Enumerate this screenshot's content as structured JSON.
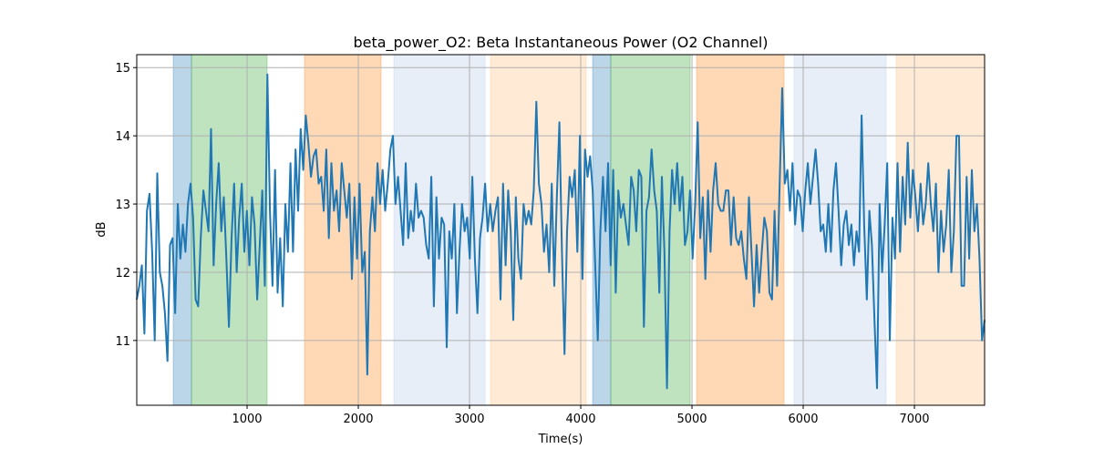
{
  "chart_data": {
    "type": "line",
    "title": "beta_power_O2: Beta Instantaneous Power (O2 Channel)",
    "xlabel": "Time(s)",
    "ylabel": "dB",
    "xlim": [
      8,
      7631
    ],
    "ylim": [
      10.05,
      15.19
    ],
    "grid": true,
    "xticks": [
      1000,
      2000,
      3000,
      4000,
      5000,
      6000,
      7000
    ],
    "xtick_labels": [
      "1000",
      "2000",
      "3000",
      "4000",
      "5000",
      "6000",
      "7000"
    ],
    "yticks": [
      11,
      12,
      13,
      14,
      15
    ],
    "ytick_labels": [
      "11",
      "12",
      "13",
      "14",
      "15"
    ],
    "line_color": "#1f77b4",
    "spans": [
      {
        "x0": 336,
        "x1": 500,
        "color": "#1f77b4",
        "alpha": 0.3
      },
      {
        "x0": 500,
        "x1": 1180,
        "color": "#2ca02c",
        "alpha": 0.3
      },
      {
        "x0": 1516,
        "x1": 2205,
        "color": "#ff7f0e",
        "alpha": 0.3
      },
      {
        "x0": 2320,
        "x1": 3140,
        "color": "#aec7e8",
        "alpha": 0.3
      },
      {
        "x0": 3189,
        "x1": 4049,
        "color": "#ffbb78",
        "alpha": 0.3
      },
      {
        "x0": 4107,
        "x1": 4270,
        "color": "#1f77b4",
        "alpha": 0.3
      },
      {
        "x0": 4270,
        "x1": 4984,
        "color": "#2ca02c",
        "alpha": 0.3
      },
      {
        "x0": 5041,
        "x1": 5828,
        "color": "#ff7f0e",
        "alpha": 0.3
      },
      {
        "x0": 5918,
        "x1": 6746,
        "color": "#aec7e8",
        "alpha": 0.3
      },
      {
        "x0": 6836,
        "x1": 7631,
        "color": "#ffbb78",
        "alpha": 0.3
      }
    ],
    "series": [
      {
        "name": "beta_power_O2",
        "x_range": [
          8,
          7631
        ],
        "values": [
          11.6,
          11.8,
          12.1,
          11.1,
          12.9,
          13.15,
          12.3,
          11.0,
          13.45,
          12.0,
          11.8,
          11.4,
          10.7,
          12.4,
          12.5,
          11.4,
          13.0,
          12.2,
          12.7,
          12.3,
          13.0,
          13.3,
          12.8,
          11.6,
          11.5,
          12.5,
          13.2,
          12.9,
          12.6,
          14.1,
          12.1,
          13.0,
          13.6,
          12.6,
          13.1,
          12.2,
          11.2,
          12.5,
          13.3,
          12.0,
          12.8,
          13.3,
          12.3,
          12.9,
          12.1,
          13.1,
          12.7,
          11.6,
          12.4,
          13.2,
          11.8,
          14.9,
          12.9,
          11.8,
          13.5,
          11.7,
          12.5,
          11.5,
          13.0,
          12.3,
          13.6,
          12.3,
          13.8,
          12.9,
          14.1,
          13.5,
          14.3,
          13.9,
          13.4,
          13.7,
          13.8,
          13.3,
          13.4,
          12.9,
          13.8,
          12.5,
          13.6,
          12.9,
          13.2,
          12.6,
          13.6,
          13.2,
          12.8,
          13.3,
          11.9,
          13.1,
          12.2,
          13.3,
          12.0,
          12.3,
          10.5,
          12.6,
          13.1,
          12.6,
          13.6,
          13.0,
          13.5,
          12.9,
          13.3,
          13.8,
          14.0,
          13.0,
          13.4,
          12.9,
          12.4,
          13.6,
          12.5,
          12.9,
          12.6,
          13.3,
          12.8,
          12.9,
          12.8,
          12.4,
          12.2,
          13.4,
          11.5,
          13.1,
          12.2,
          12.8,
          12.7,
          10.9,
          12.6,
          12.2,
          13.0,
          11.4,
          12.3,
          13.0,
          12.6,
          12.8,
          12.2,
          13.4,
          12.2,
          11.4,
          12.5,
          12.8,
          13.3,
          12.6,
          13.0,
          12.6,
          12.9,
          13.1,
          11.6,
          13.3,
          12.1,
          13.2,
          12.6,
          11.3,
          13.1,
          12.2,
          11.9,
          13.0,
          12.7,
          12.9,
          12.7,
          13.2,
          14.5,
          13.3,
          13.0,
          12.3,
          12.7,
          12.0,
          13.3,
          11.8,
          13.1,
          14.2,
          12.3,
          10.8,
          12.6,
          13.4,
          13.1,
          13.5,
          12.3,
          14.0,
          11.9,
          13.8,
          13.4,
          13.7,
          13.2,
          12.1,
          11.0,
          12.6,
          13.4,
          12.6,
          13.6,
          12.1,
          13.5,
          11.7,
          13.2,
          12.8,
          13.0,
          12.7,
          12.4,
          13.4,
          13.2,
          12.6,
          13.5,
          13.4,
          11.2,
          12.9,
          13.1,
          13.8,
          13.2,
          12.9,
          11.7,
          13.4,
          12.3,
          10.3,
          12.6,
          13.5,
          13.0,
          13.6,
          12.9,
          13.4,
          12.4,
          12.6,
          13.2,
          12.2,
          13.0,
          14.2,
          12.5,
          13.1,
          11.9,
          13.2,
          12.3,
          13.2,
          13.6,
          13.0,
          12.9,
          12.9,
          13.2,
          13.2,
          12.4,
          13.1,
          12.5,
          12.4,
          12.6,
          12.2,
          11.9,
          13.1,
          12.3,
          11.5,
          12.4,
          11.7,
          12.3,
          12.8,
          12.6,
          11.7,
          11.6,
          12.9,
          11.8,
          13.3,
          14.7,
          13.3,
          13.5,
          12.9,
          13.6,
          12.7,
          13.2,
          13.1,
          12.6,
          13.2,
          13.6,
          13.0,
          13.4,
          13.8,
          13.3,
          12.6,
          12.7,
          12.3,
          13.0,
          12.3,
          13.2,
          13.6,
          12.9,
          12.1,
          12.7,
          12.9,
          12.4,
          12.7,
          12.1,
          12.6,
          12.3,
          14.3,
          12.7,
          11.6,
          12.9,
          12.4,
          11.3,
          10.3,
          13.0,
          12.0,
          12.7,
          13.6,
          11.0,
          12.8,
          12.2,
          13.6,
          12.3,
          13.4,
          12.7,
          13.9,
          12.8,
          13.5,
          13.1,
          12.6,
          13.3,
          12.7,
          13.0,
          13.6,
          13.0,
          12.6,
          13.3,
          12.0,
          12.9,
          12.3,
          12.7,
          13.5,
          12.0,
          12.6,
          14.0,
          14.0,
          11.8,
          11.8,
          13.4,
          12.2,
          13.5,
          12.6,
          13.0,
          12.2,
          11.0,
          11.3
        ]
      }
    ]
  }
}
